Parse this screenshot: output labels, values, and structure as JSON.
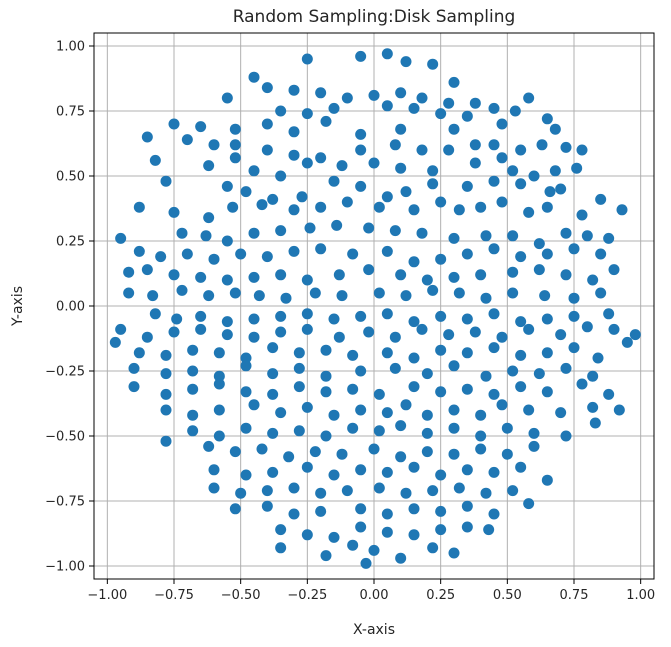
{
  "chart_data": {
    "type": "scatter",
    "title": "Random Sampling:Disk Sampling",
    "xlabel": "X-axis",
    "ylabel": "Y-axis",
    "xlim": [
      -1.05,
      1.05
    ],
    "ylim": [
      -1.05,
      1.05
    ],
    "xticks": [
      -1.0,
      -0.75,
      -0.5,
      -0.25,
      0.0,
      0.25,
      0.5,
      0.75,
      1.0
    ],
    "yticks": [
      -1.0,
      -0.75,
      -0.5,
      -0.25,
      0.0,
      0.25,
      0.5,
      0.75,
      1.0
    ],
    "xtick_labels": [
      "−1.00",
      "−0.75",
      "−0.50",
      "−0.25",
      "0.00",
      "0.25",
      "0.50",
      "0.75",
      "1.00"
    ],
    "ytick_labels": [
      "−1.00",
      "−0.75",
      "−0.50",
      "−0.25",
      "0.00",
      "0.25",
      "0.50",
      "0.75",
      "1.00"
    ],
    "grid": true,
    "marker_color": "#1f77b4",
    "points": [
      [
        -0.25,
        0.95
      ],
      [
        -0.05,
        0.96
      ],
      [
        0.05,
        0.97
      ],
      [
        0.12,
        0.94
      ],
      [
        0.22,
        0.93
      ],
      [
        0.3,
        0.86
      ],
      [
        -0.45,
        0.88
      ],
      [
        -0.4,
        0.84
      ],
      [
        -0.3,
        0.83
      ],
      [
        -0.2,
        0.82
      ],
      [
        -0.1,
        0.8
      ],
      [
        0.0,
        0.81
      ],
      [
        0.1,
        0.82
      ],
      [
        0.18,
        0.8
      ],
      [
        0.28,
        0.78
      ],
      [
        0.38,
        0.78
      ],
      [
        0.58,
        0.8
      ],
      [
        -0.55,
        0.8
      ],
      [
        -0.35,
        0.75
      ],
      [
        -0.25,
        0.74
      ],
      [
        -0.15,
        0.76
      ],
      [
        0.05,
        0.77
      ],
      [
        0.15,
        0.76
      ],
      [
        0.25,
        0.74
      ],
      [
        0.35,
        0.73
      ],
      [
        0.45,
        0.76
      ],
      [
        0.53,
        0.75
      ],
      [
        -0.75,
        0.7
      ],
      [
        -0.65,
        0.69
      ],
      [
        -0.52,
        0.68
      ],
      [
        -0.4,
        0.7
      ],
      [
        -0.3,
        0.67
      ],
      [
        -0.18,
        0.71
      ],
      [
        -0.05,
        0.66
      ],
      [
        0.1,
        0.68
      ],
      [
        0.3,
        0.68
      ],
      [
        0.45,
        0.62
      ],
      [
        0.48,
        0.7
      ],
      [
        0.65,
        0.72
      ],
      [
        0.68,
        0.68
      ],
      [
        -0.85,
        0.65
      ],
      [
        -0.7,
        0.64
      ],
      [
        -0.6,
        0.62
      ],
      [
        -0.52,
        0.62
      ],
      [
        -0.4,
        0.6
      ],
      [
        -0.3,
        0.58
      ],
      [
        -0.2,
        0.57
      ],
      [
        -0.05,
        0.6
      ],
      [
        0.08,
        0.62
      ],
      [
        0.18,
        0.6
      ],
      [
        0.28,
        0.6
      ],
      [
        0.38,
        0.62
      ],
      [
        0.48,
        0.57
      ],
      [
        0.55,
        0.6
      ],
      [
        0.63,
        0.62
      ],
      [
        0.72,
        0.61
      ],
      [
        0.78,
        0.6
      ],
      [
        -0.82,
        0.56
      ],
      [
        -0.62,
        0.54
      ],
      [
        -0.52,
        0.57
      ],
      [
        -0.45,
        0.52
      ],
      [
        -0.35,
        0.5
      ],
      [
        -0.25,
        0.55
      ],
      [
        -0.12,
        0.54
      ],
      [
        0.0,
        0.55
      ],
      [
        0.1,
        0.53
      ],
      [
        0.22,
        0.52
      ],
      [
        0.38,
        0.55
      ],
      [
        0.52,
        0.52
      ],
      [
        0.6,
        0.5
      ],
      [
        0.68,
        0.52
      ],
      [
        0.76,
        0.53
      ],
      [
        -0.78,
        0.48
      ],
      [
        -0.55,
        0.46
      ],
      [
        -0.48,
        0.44
      ],
      [
        -0.38,
        0.41
      ],
      [
        -0.27,
        0.42
      ],
      [
        -0.15,
        0.48
      ],
      [
        -0.05,
        0.46
      ],
      [
        0.05,
        0.42
      ],
      [
        0.12,
        0.44
      ],
      [
        0.22,
        0.47
      ],
      [
        0.35,
        0.46
      ],
      [
        0.45,
        0.48
      ],
      [
        0.55,
        0.47
      ],
      [
        0.66,
        0.44
      ],
      [
        0.7,
        0.45
      ],
      [
        0.85,
        0.41
      ],
      [
        -0.88,
        0.38
      ],
      [
        -0.75,
        0.36
      ],
      [
        -0.62,
        0.34
      ],
      [
        -0.53,
        0.38
      ],
      [
        -0.42,
        0.39
      ],
      [
        -0.3,
        0.37
      ],
      [
        -0.2,
        0.38
      ],
      [
        -0.1,
        0.4
      ],
      [
        0.02,
        0.38
      ],
      [
        0.15,
        0.37
      ],
      [
        0.25,
        0.4
      ],
      [
        0.32,
        0.37
      ],
      [
        0.4,
        0.38
      ],
      [
        0.48,
        0.4
      ],
      [
        0.58,
        0.36
      ],
      [
        0.65,
        0.38
      ],
      [
        0.78,
        0.35
      ],
      [
        0.93,
        0.37
      ],
      [
        -0.72,
        0.28
      ],
      [
        -0.63,
        0.27
      ],
      [
        -0.55,
        0.25
      ],
      [
        -0.45,
        0.28
      ],
      [
        -0.35,
        0.29
      ],
      [
        -0.24,
        0.3
      ],
      [
        -0.14,
        0.31
      ],
      [
        -0.02,
        0.3
      ],
      [
        0.08,
        0.29
      ],
      [
        0.18,
        0.28
      ],
      [
        0.3,
        0.26
      ],
      [
        0.42,
        0.27
      ],
      [
        0.52,
        0.27
      ],
      [
        0.62,
        0.24
      ],
      [
        0.72,
        0.28
      ],
      [
        0.8,
        0.27
      ],
      [
        0.88,
        0.26
      ],
      [
        -0.95,
        0.26
      ],
      [
        -0.88,
        0.21
      ],
      [
        -0.8,
        0.19
      ],
      [
        -0.7,
        0.2
      ],
      [
        -0.6,
        0.18
      ],
      [
        -0.5,
        0.2
      ],
      [
        -0.4,
        0.19
      ],
      [
        -0.3,
        0.21
      ],
      [
        -0.2,
        0.22
      ],
      [
        -0.08,
        0.2
      ],
      [
        0.05,
        0.21
      ],
      [
        0.15,
        0.17
      ],
      [
        0.25,
        0.18
      ],
      [
        0.35,
        0.2
      ],
      [
        0.45,
        0.22
      ],
      [
        0.55,
        0.19
      ],
      [
        0.65,
        0.2
      ],
      [
        0.75,
        0.22
      ],
      [
        0.85,
        0.2
      ],
      [
        -0.92,
        0.13
      ],
      [
        -0.85,
        0.14
      ],
      [
        -0.75,
        0.12
      ],
      [
        -0.65,
        0.11
      ],
      [
        -0.55,
        0.1
      ],
      [
        -0.45,
        0.11
      ],
      [
        -0.35,
        0.12
      ],
      [
        -0.25,
        0.1
      ],
      [
        -0.13,
        0.12
      ],
      [
        -0.02,
        0.14
      ],
      [
        0.1,
        0.12
      ],
      [
        0.2,
        0.1
      ],
      [
        0.3,
        0.11
      ],
      [
        0.4,
        0.12
      ],
      [
        0.52,
        0.13
      ],
      [
        0.62,
        0.14
      ],
      [
        0.72,
        0.12
      ],
      [
        0.82,
        0.1
      ],
      [
        0.9,
        0.14
      ],
      [
        -0.92,
        0.05
      ],
      [
        -0.83,
        0.04
      ],
      [
        -0.72,
        0.06
      ],
      [
        -0.62,
        0.04
      ],
      [
        -0.52,
        0.05
      ],
      [
        -0.43,
        0.04
      ],
      [
        -0.33,
        0.03
      ],
      [
        -0.22,
        0.05
      ],
      [
        -0.12,
        0.04
      ],
      [
        0.02,
        0.05
      ],
      [
        0.12,
        0.04
      ],
      [
        0.22,
        0.06
      ],
      [
        0.32,
        0.05
      ],
      [
        0.42,
        0.03
      ],
      [
        0.52,
        0.05
      ],
      [
        0.64,
        0.04
      ],
      [
        0.75,
        0.03
      ],
      [
        0.85,
        0.05
      ],
      [
        -0.82,
        -0.03
      ],
      [
        -0.74,
        -0.05
      ],
      [
        -0.65,
        -0.04
      ],
      [
        -0.55,
        -0.06
      ],
      [
        -0.45,
        -0.05
      ],
      [
        -0.35,
        -0.04
      ],
      [
        -0.25,
        -0.03
      ],
      [
        -0.15,
        -0.05
      ],
      [
        -0.05,
        -0.04
      ],
      [
        0.05,
        -0.03
      ],
      [
        0.15,
        -0.06
      ],
      [
        0.25,
        -0.04
      ],
      [
        0.35,
        -0.05
      ],
      [
        0.45,
        -0.03
      ],
      [
        0.55,
        -0.06
      ],
      [
        0.65,
        -0.05
      ],
      [
        0.75,
        -0.04
      ],
      [
        0.88,
        -0.03
      ],
      [
        -0.95,
        -0.09
      ],
      [
        -0.85,
        -0.12
      ],
      [
        -0.75,
        -0.1
      ],
      [
        -0.65,
        -0.09
      ],
      [
        -0.55,
        -0.11
      ],
      [
        -0.45,
        -0.12
      ],
      [
        -0.35,
        -0.1
      ],
      [
        -0.25,
        -0.09
      ],
      [
        -0.13,
        -0.12
      ],
      [
        -0.02,
        -0.1
      ],
      [
        0.08,
        -0.12
      ],
      [
        0.18,
        -0.09
      ],
      [
        0.28,
        -0.11
      ],
      [
        0.38,
        -0.1
      ],
      [
        0.48,
        -0.12
      ],
      [
        0.58,
        -0.09
      ],
      [
        0.7,
        -0.11
      ],
      [
        0.8,
        -0.08
      ],
      [
        0.9,
        -0.09
      ],
      [
        0.98,
        -0.11
      ],
      [
        -0.97,
        -0.14
      ],
      [
        -0.88,
        -0.18
      ],
      [
        -0.78,
        -0.19
      ],
      [
        -0.68,
        -0.17
      ],
      [
        -0.58,
        -0.18
      ],
      [
        -0.48,
        -0.2
      ],
      [
        -0.38,
        -0.16
      ],
      [
        -0.28,
        -0.18
      ],
      [
        -0.18,
        -0.17
      ],
      [
        -0.08,
        -0.19
      ],
      [
        0.05,
        -0.18
      ],
      [
        0.15,
        -0.2
      ],
      [
        0.25,
        -0.17
      ],
      [
        0.35,
        -0.18
      ],
      [
        0.45,
        -0.16
      ],
      [
        0.55,
        -0.19
      ],
      [
        0.65,
        -0.18
      ],
      [
        0.75,
        -0.16
      ],
      [
        0.84,
        -0.2
      ],
      [
        0.95,
        -0.14
      ],
      [
        -0.9,
        -0.24
      ],
      [
        -0.78,
        -0.26
      ],
      [
        -0.68,
        -0.25
      ],
      [
        -0.58,
        -0.27
      ],
      [
        -0.48,
        -0.23
      ],
      [
        -0.38,
        -0.26
      ],
      [
        -0.28,
        -0.24
      ],
      [
        -0.18,
        -0.27
      ],
      [
        -0.05,
        -0.25
      ],
      [
        0.08,
        -0.24
      ],
      [
        0.2,
        -0.26
      ],
      [
        0.3,
        -0.23
      ],
      [
        0.42,
        -0.27
      ],
      [
        0.52,
        -0.25
      ],
      [
        0.62,
        -0.26
      ],
      [
        0.72,
        -0.24
      ],
      [
        0.82,
        -0.27
      ],
      [
        -0.9,
        -0.31
      ],
      [
        -0.78,
        -0.34
      ],
      [
        -0.68,
        -0.32
      ],
      [
        -0.58,
        -0.3
      ],
      [
        -0.48,
        -0.33
      ],
      [
        -0.38,
        -0.34
      ],
      [
        -0.28,
        -0.31
      ],
      [
        -0.18,
        -0.33
      ],
      [
        -0.08,
        -0.32
      ],
      [
        0.02,
        -0.34
      ],
      [
        0.15,
        -0.31
      ],
      [
        0.25,
        -0.33
      ],
      [
        0.35,
        -0.32
      ],
      [
        0.45,
        -0.34
      ],
      [
        0.55,
        -0.31
      ],
      [
        0.65,
        -0.33
      ],
      [
        0.78,
        -0.3
      ],
      [
        0.88,
        -0.34
      ],
      [
        -0.78,
        -0.4
      ],
      [
        -0.68,
        -0.42
      ],
      [
        -0.58,
        -0.4
      ],
      [
        -0.45,
        -0.38
      ],
      [
        -0.35,
        -0.41
      ],
      [
        -0.25,
        -0.39
      ],
      [
        -0.15,
        -0.42
      ],
      [
        -0.05,
        -0.4
      ],
      [
        0.05,
        -0.41
      ],
      [
        0.12,
        -0.38
      ],
      [
        0.2,
        -0.42
      ],
      [
        0.3,
        -0.4
      ],
      [
        0.4,
        -0.42
      ],
      [
        0.48,
        -0.38
      ],
      [
        0.58,
        -0.4
      ],
      [
        0.7,
        -0.41
      ],
      [
        0.82,
        -0.39
      ],
      [
        0.92,
        -0.4
      ],
      [
        -0.78,
        -0.52
      ],
      [
        -0.68,
        -0.48
      ],
      [
        -0.58,
        -0.5
      ],
      [
        -0.48,
        -0.47
      ],
      [
        -0.38,
        -0.49
      ],
      [
        -0.28,
        -0.48
      ],
      [
        -0.18,
        -0.5
      ],
      [
        -0.08,
        -0.47
      ],
      [
        0.02,
        -0.48
      ],
      [
        0.1,
        -0.46
      ],
      [
        0.2,
        -0.49
      ],
      [
        0.3,
        -0.47
      ],
      [
        0.4,
        -0.5
      ],
      [
        0.5,
        -0.47
      ],
      [
        0.6,
        -0.49
      ],
      [
        0.72,
        -0.5
      ],
      [
        0.83,
        -0.45
      ],
      [
        -0.62,
        -0.54
      ],
      [
        -0.52,
        -0.56
      ],
      [
        -0.42,
        -0.55
      ],
      [
        -0.32,
        -0.58
      ],
      [
        -0.22,
        -0.56
      ],
      [
        -0.12,
        -0.57
      ],
      [
        0.0,
        -0.55
      ],
      [
        0.1,
        -0.58
      ],
      [
        0.2,
        -0.56
      ],
      [
        0.3,
        -0.57
      ],
      [
        0.4,
        -0.55
      ],
      [
        0.5,
        -0.57
      ],
      [
        0.6,
        -0.54
      ],
      [
        -0.6,
        -0.63
      ],
      [
        -0.48,
        -0.65
      ],
      [
        -0.38,
        -0.64
      ],
      [
        -0.25,
        -0.62
      ],
      [
        -0.15,
        -0.65
      ],
      [
        -0.05,
        -0.63
      ],
      [
        0.05,
        -0.64
      ],
      [
        0.15,
        -0.62
      ],
      [
        0.25,
        -0.65
      ],
      [
        0.35,
        -0.63
      ],
      [
        0.45,
        -0.64
      ],
      [
        0.55,
        -0.62
      ],
      [
        -0.6,
        -0.7
      ],
      [
        -0.5,
        -0.72
      ],
      [
        -0.4,
        -0.71
      ],
      [
        -0.3,
        -0.7
      ],
      [
        -0.2,
        -0.72
      ],
      [
        -0.1,
        -0.71
      ],
      [
        0.02,
        -0.7
      ],
      [
        0.12,
        -0.72
      ],
      [
        0.22,
        -0.71
      ],
      [
        0.32,
        -0.7
      ],
      [
        0.42,
        -0.72
      ],
      [
        0.52,
        -0.71
      ],
      [
        0.65,
        -0.67
      ],
      [
        -0.52,
        -0.78
      ],
      [
        -0.4,
        -0.77
      ],
      [
        -0.3,
        -0.8
      ],
      [
        -0.2,
        -0.79
      ],
      [
        -0.05,
        -0.78
      ],
      [
        0.05,
        -0.8
      ],
      [
        0.15,
        -0.78
      ],
      [
        0.25,
        -0.79
      ],
      [
        0.35,
        -0.77
      ],
      [
        0.45,
        -0.8
      ],
      [
        0.58,
        -0.76
      ],
      [
        -0.35,
        -0.86
      ],
      [
        -0.25,
        -0.88
      ],
      [
        -0.15,
        -0.89
      ],
      [
        -0.05,
        -0.85
      ],
      [
        0.05,
        -0.87
      ],
      [
        0.15,
        -0.88
      ],
      [
        0.25,
        -0.86
      ],
      [
        0.35,
        -0.85
      ],
      [
        0.43,
        -0.86
      ],
      [
        -0.35,
        -0.93
      ],
      [
        -0.18,
        -0.96
      ],
      [
        -0.08,
        -0.92
      ],
      [
        0.0,
        -0.94
      ],
      [
        0.1,
        -0.97
      ],
      [
        0.22,
        -0.93
      ],
      [
        0.3,
        -0.95
      ],
      [
        -0.03,
        -0.99
      ]
    ]
  }
}
